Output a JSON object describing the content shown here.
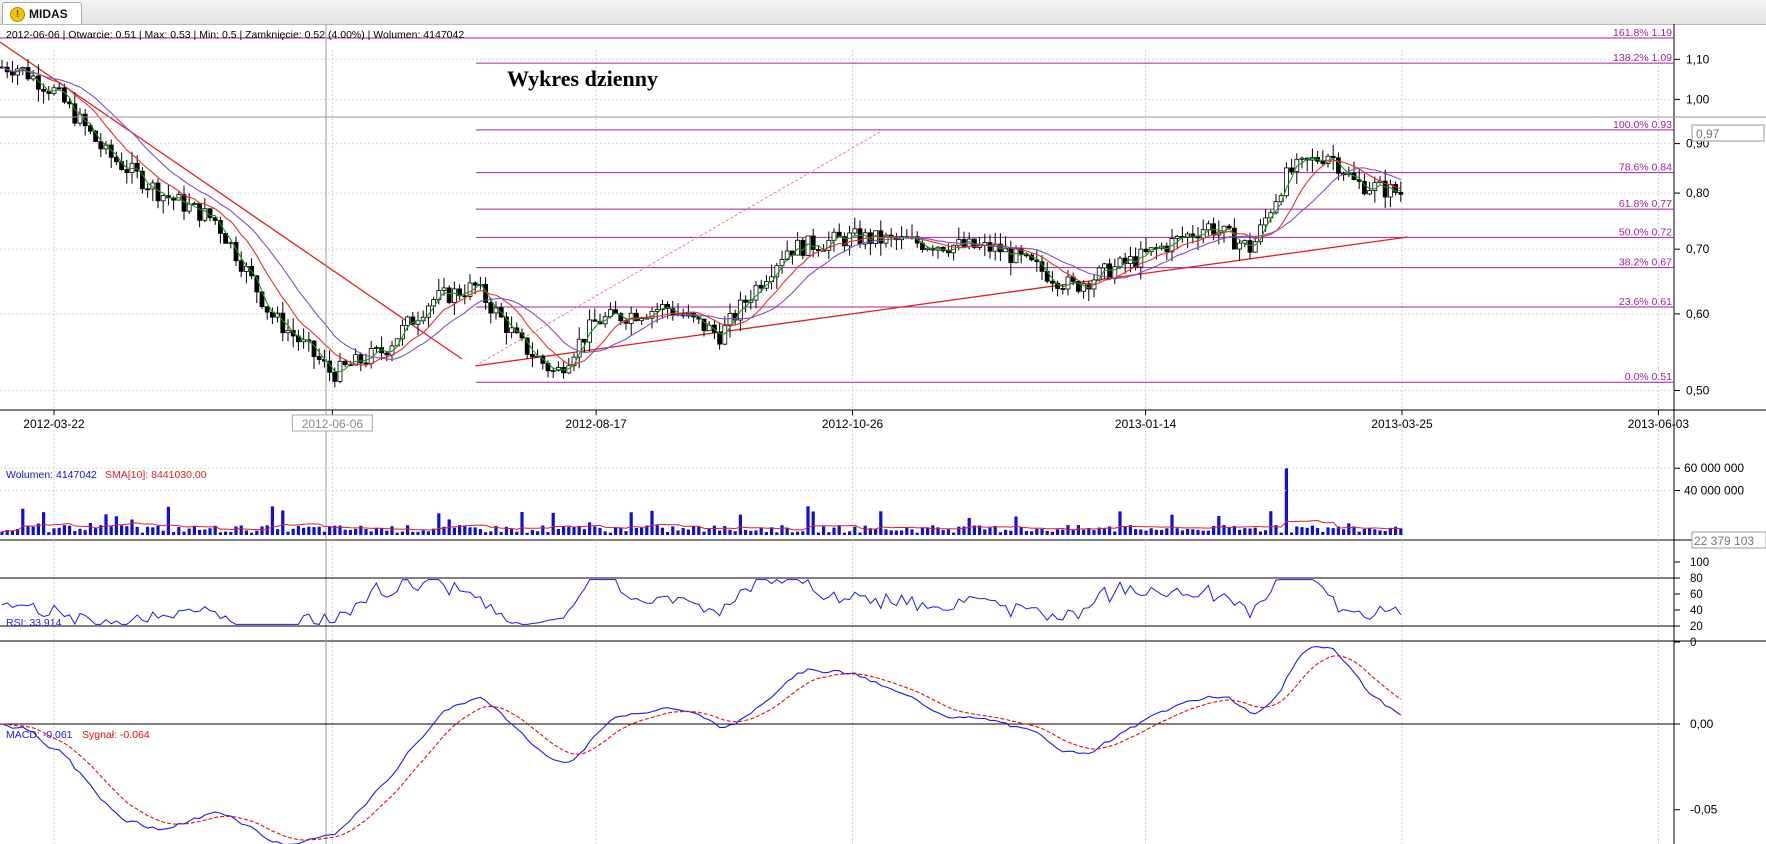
{
  "tab": {
    "label": "MIDAS",
    "icon": "warning-icon"
  },
  "price_panel": {
    "info_line": "2012-06-06 | Otwarcie: 0.51 | Max: 0.53 | Min: 0.5 | Zamknięcie: 0.52 (4.00%)  | Wolumen: 4147042",
    "title": "Wykres dzienny",
    "current_price_label": "0,97",
    "y_ticks": [
      "1,10",
      "1,00",
      "0,90",
      "0,80",
      "0,70",
      "0,60",
      "0,50"
    ],
    "x_ticks": [
      "2012-03-22",
      "2012-06-06",
      "2012-08-17",
      "2012-10-26",
      "2013-01-14",
      "2013-03-25",
      "2013-06-03"
    ],
    "fib_levels": [
      {
        "label": "161.8% 1.19",
        "value": 1.19
      },
      {
        "label": "138.2% 1.09",
        "value": 1.09
      },
      {
        "label": "100.0% 0.93",
        "value": 0.93
      },
      {
        "label": "78.6% 0.84",
        "value": 0.84
      },
      {
        "label": "61.8% 0.77",
        "value": 0.77
      },
      {
        "label": "50.0% 0.72",
        "value": 0.72
      },
      {
        "label": "38.2% 0.67",
        "value": 0.67
      },
      {
        "label": "23.6% 0.61",
        "value": 0.61
      },
      {
        "label": "0.0% 0.51",
        "value": 0.51
      }
    ]
  },
  "volume_panel": {
    "label": "Wolumen: 4147042",
    "sma_label": "SMA[10]: 8441030.00",
    "y_ticks": [
      "60 000 000",
      "40 000 000"
    ],
    "current_label": "22 379 103"
  },
  "rsi_panel": {
    "label": "RSI: 33.914",
    "y_ticks": [
      "100",
      "80",
      "60",
      "40",
      "20",
      "0"
    ]
  },
  "macd_panel": {
    "label": "MACD: -0.061",
    "signal_label": "Sygnał: -0.064",
    "y_ticks": [
      "0,00",
      "-0,05"
    ]
  },
  "colors": {
    "fib": "#a020a0",
    "trend": "#e02020",
    "volume": "#1010d0",
    "sma": "#e02020",
    "rsi": "#1a1aee",
    "macd": "#1a1aee",
    "signal": "#e01010",
    "ma_green": "#1a9a1a",
    "ma_red": "#e03030",
    "ma_purple": "#8050c0"
  },
  "chart_data": {
    "type": "candlestick",
    "title": "Wykres dzienny",
    "price_range": [
      0.49,
      1.16
    ],
    "price_scale": "log",
    "x_axis_dates": [
      "2012-03-22",
      "2012-06-06",
      "2012-08-17",
      "2012-10-26",
      "2013-01-14",
      "2013-03-25",
      "2013-06-03"
    ],
    "close_path": [
      {
        "date": "2012-03-12",
        "close": 1.08
      },
      {
        "date": "2012-03-22",
        "close": 1.02
      },
      {
        "date": "2012-04-05",
        "close": 0.88
      },
      {
        "date": "2012-04-20",
        "close": 0.8
      },
      {
        "date": "2012-05-05",
        "close": 0.75
      },
      {
        "date": "2012-05-20",
        "close": 0.6
      },
      {
        "date": "2012-06-06",
        "close": 0.52
      },
      {
        "date": "2012-06-20",
        "close": 0.55
      },
      {
        "date": "2012-07-03",
        "close": 0.62
      },
      {
        "date": "2012-07-15",
        "close": 0.64
      },
      {
        "date": "2012-07-27",
        "close": 0.56
      },
      {
        "date": "2012-08-06",
        "close": 0.52
      },
      {
        "date": "2012-08-17",
        "close": 0.59
      },
      {
        "date": "2012-09-05",
        "close": 0.61
      },
      {
        "date": "2012-09-20",
        "close": 0.57
      },
      {
        "date": "2012-10-08",
        "close": 0.7
      },
      {
        "date": "2012-10-26",
        "close": 0.72
      },
      {
        "date": "2012-11-15",
        "close": 0.71
      },
      {
        "date": "2012-12-05",
        "close": 0.7
      },
      {
        "date": "2012-12-25",
        "close": 0.64
      },
      {
        "date": "2013-01-14",
        "close": 0.69
      },
      {
        "date": "2013-01-31",
        "close": 0.74
      },
      {
        "date": "2013-02-12",
        "close": 0.7
      },
      {
        "date": "2013-02-22",
        "close": 0.84
      },
      {
        "date": "2013-03-05",
        "close": 0.88
      },
      {
        "date": "2013-03-12",
        "close": 0.82
      },
      {
        "date": "2013-03-25",
        "close": 0.8
      }
    ],
    "volume_spikes": [
      {
        "date": "2013-02-22",
        "volume": 60000000
      },
      {
        "date": "2013-03-25",
        "volume": 22379103
      }
    ],
    "rsi_range": [
      0,
      100
    ],
    "rsi_levels": [
      20,
      80
    ],
    "macd_range": [
      -0.07,
      0.035
    ]
  }
}
